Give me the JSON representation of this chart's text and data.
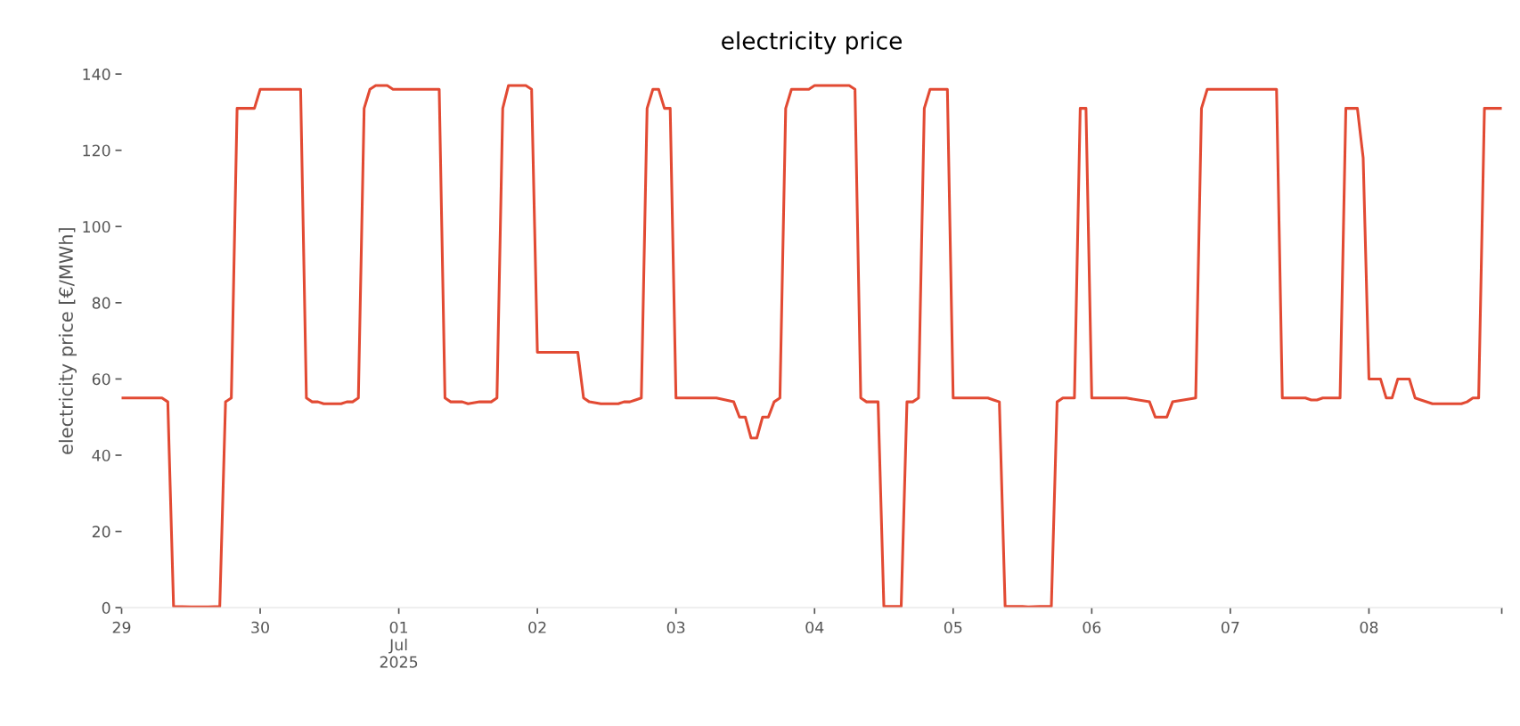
{
  "chart_data": {
    "type": "line",
    "title": "electricity price",
    "ylabel": "electricity price [€/MWh]",
    "x": [
      "2025-06-29T00:00",
      "2025-06-29T07:00",
      "2025-06-29T08:00",
      "2025-06-29T09:00",
      "2025-06-29T12:00",
      "2025-06-29T15:00",
      "2025-06-29T17:00",
      "2025-06-29T18:00",
      "2025-06-29T19:00",
      "2025-06-29T20:00",
      "2025-06-29T23:00",
      "2025-06-30T00:00",
      "2025-06-30T07:00",
      "2025-06-30T08:00",
      "2025-06-30T09:00",
      "2025-06-30T10:00",
      "2025-06-30T11:00",
      "2025-06-30T14:00",
      "2025-06-30T15:00",
      "2025-06-30T16:00",
      "2025-06-30T17:00",
      "2025-06-30T18:00",
      "2025-06-30T19:00",
      "2025-06-30T20:00",
      "2025-06-30T22:00",
      "2025-06-30T23:00",
      "2025-07-01T07:00",
      "2025-07-01T08:00",
      "2025-07-01T09:00",
      "2025-07-01T11:00",
      "2025-07-01T12:00",
      "2025-07-01T14:00",
      "2025-07-01T16:00",
      "2025-07-01T17:00",
      "2025-07-01T18:00",
      "2025-07-01T19:00",
      "2025-07-01T22:00",
      "2025-07-01T23:00",
      "2025-07-02T00:00",
      "2025-07-02T07:00",
      "2025-07-02T08:00",
      "2025-07-02T09:00",
      "2025-07-02T11:00",
      "2025-07-02T14:00",
      "2025-07-02T15:00",
      "2025-07-02T16:00",
      "2025-07-02T17:00",
      "2025-07-02T18:00",
      "2025-07-02T19:00",
      "2025-07-02T20:00",
      "2025-07-02T21:00",
      "2025-07-02T22:00",
      "2025-07-02T23:00",
      "2025-07-03T00:00",
      "2025-07-03T07:00",
      "2025-07-03T10:00",
      "2025-07-03T11:00",
      "2025-07-03T12:00",
      "2025-07-03T13:00",
      "2025-07-03T14:00",
      "2025-07-03T15:00",
      "2025-07-03T16:00",
      "2025-07-03T17:00",
      "2025-07-03T18:00",
      "2025-07-03T19:00",
      "2025-07-03T20:00",
      "2025-07-03T23:00",
      "2025-07-04T00:00",
      "2025-07-04T06:00",
      "2025-07-04T07:00",
      "2025-07-04T08:00",
      "2025-07-04T09:00",
      "2025-07-04T11:00",
      "2025-07-04T12:00",
      "2025-07-04T15:00",
      "2025-07-04T16:00",
      "2025-07-04T17:00",
      "2025-07-04T18:00",
      "2025-07-04T19:00",
      "2025-07-04T20:00",
      "2025-07-04T23:00",
      "2025-07-05T00:00",
      "2025-07-05T06:00",
      "2025-07-05T07:00",
      "2025-07-05T08:00",
      "2025-07-05T09:00",
      "2025-07-05T12:00",
      "2025-07-05T13:00",
      "2025-07-05T15:00",
      "2025-07-05T17:00",
      "2025-07-05T18:00",
      "2025-07-05T19:00",
      "2025-07-05T21:00",
      "2025-07-05T22:00",
      "2025-07-05T23:00",
      "2025-07-06T00:00",
      "2025-07-06T06:00",
      "2025-07-06T10:00",
      "2025-07-06T11:00",
      "2025-07-06T13:00",
      "2025-07-06T14:00",
      "2025-07-06T18:00",
      "2025-07-06T19:00",
      "2025-07-06T20:00",
      "2025-07-07T08:00",
      "2025-07-07T09:00",
      "2025-07-07T13:00",
      "2025-07-07T14:00",
      "2025-07-07T15:00",
      "2025-07-07T16:00",
      "2025-07-07T19:00",
      "2025-07-07T20:00",
      "2025-07-07T22:00",
      "2025-07-07T23:00",
      "2025-07-08T00:00",
      "2025-07-08T02:00",
      "2025-07-08T03:00",
      "2025-07-08T04:00",
      "2025-07-08T05:00",
      "2025-07-08T07:00",
      "2025-07-08T08:00",
      "2025-07-08T09:00",
      "2025-07-08T11:00",
      "2025-07-08T16:00",
      "2025-07-08T17:00",
      "2025-07-08T18:00",
      "2025-07-08T19:00",
      "2025-07-08T20:00",
      "2025-07-08T23:00"
    ],
    "series": [
      {
        "color": "#e24a33",
        "values": [
          55,
          55,
          54,
          0.3,
          0.2,
          0.2,
          0.3,
          54,
          55,
          131,
          131,
          136,
          136,
          55,
          54,
          54,
          53.5,
          53.5,
          54,
          54,
          55,
          131,
          136,
          137,
          137,
          136,
          136,
          55,
          54,
          54,
          53.5,
          54,
          54,
          55,
          131,
          137,
          137,
          136,
          67,
          67,
          55,
          54,
          53.5,
          53.5,
          54,
          54,
          54.5,
          55,
          131,
          136,
          136,
          131,
          131,
          55,
          55,
          54,
          50,
          50,
          44.5,
          44.5,
          50,
          50,
          54,
          55,
          131,
          136,
          136,
          137,
          137,
          136,
          55,
          54,
          54,
          0.3,
          0.3,
          54,
          54,
          55,
          131,
          136,
          136,
          55,
          55,
          54.5,
          54,
          0.3,
          0.3,
          0.2,
          0.3,
          0.3,
          54,
          55,
          55,
          131,
          131,
          55,
          55,
          54,
          50,
          50,
          54,
          55,
          131,
          136,
          136,
          55,
          55,
          54.5,
          54.5,
          55,
          55,
          131,
          131,
          118,
          60,
          60,
          55,
          55,
          60,
          60,
          55,
          54.5,
          53.5,
          53.5,
          54,
          55,
          55,
          131,
          131
        ]
      }
    ],
    "xlim": [
      "2025-06-29T00:00",
      "2025-07-08T23:00"
    ],
    "xticks": [
      {
        "value": "2025-06-29",
        "label": "29"
      },
      {
        "value": "2025-06-30",
        "label": "30"
      },
      {
        "value": "2025-07-01",
        "label": "01\nJul\n2025"
      },
      {
        "value": "2025-07-02",
        "label": "02"
      },
      {
        "value": "2025-07-03",
        "label": "03"
      },
      {
        "value": "2025-07-04",
        "label": "04"
      },
      {
        "value": "2025-07-05",
        "label": "05"
      },
      {
        "value": "2025-07-06",
        "label": "06"
      },
      {
        "value": "2025-07-07",
        "label": "07"
      },
      {
        "value": "2025-07-08",
        "label": "08"
      },
      {
        "value": "2025-07-08T23:00",
        "label": null
      }
    ],
    "ylim": [
      0,
      140
    ],
    "yticks": [
      0,
      20,
      40,
      60,
      80,
      100,
      120,
      140
    ],
    "grid": false,
    "marker": "none",
    "line_style": "solid"
  }
}
